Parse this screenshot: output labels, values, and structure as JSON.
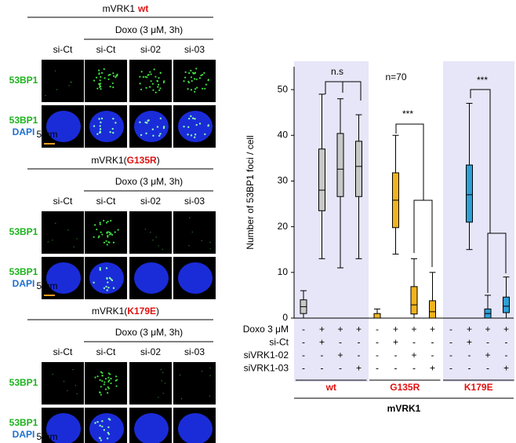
{
  "figure": {
    "panels": [
      {
        "title": "mVRK1",
        "mutation": "wt",
        "treatment": "Doxo (3 μM, 3h)",
        "columns": [
          "si-Ct",
          "si-Ct",
          "si-02",
          "si-03"
        ],
        "row1": "53BP1",
        "row2": [
          "53BP1",
          "DAPI"
        ],
        "scale_bar": "5 μm",
        "foci": [
          false,
          true,
          true,
          true
        ]
      },
      {
        "title": "mVRK1(",
        "mutation": "G135R",
        "title_end": ")",
        "treatment": "Doxo (3 μM, 3h)",
        "columns": [
          "si-Ct",
          "si-Ct",
          "si-02",
          "si-03"
        ],
        "row1": "53BP1",
        "row2": [
          "53BP1",
          "DAPI"
        ],
        "scale_bar": "5 μm",
        "foci": [
          false,
          true,
          false,
          false
        ]
      },
      {
        "title": "mVRK1(",
        "mutation": "K179E",
        "title_end": ")",
        "treatment": "Doxo (3 μM, 3h)",
        "columns": [
          "si-Ct",
          "si-Ct",
          "si-02",
          "si-03"
        ],
        "row1": "53BP1",
        "row2": [
          "53BP1",
          "DAPI"
        ],
        "scale_bar": "5 μm",
        "foci": [
          false,
          true,
          false,
          false
        ]
      }
    ]
  },
  "chart_data": {
    "type": "box",
    "ylabel": "Number of 53BP1 foci / cell",
    "ylim": [
      0,
      55
    ],
    "yticks": [
      0,
      10,
      20,
      30,
      40,
      50
    ],
    "whisker_low": [
      0,
      13,
      11,
      13,
      0,
      14,
      0,
      0,
      0,
      15,
      0,
      0
    ],
    "q1": [
      1,
      23.5,
      26.6,
      26.6,
      0,
      19.8,
      0.9,
      0,
      0,
      21,
      0,
      1.2
    ],
    "median": [
      2.5,
      28,
      32.6,
      33.2,
      0,
      25.8,
      2.9,
      1.4,
      0,
      27,
      1,
      2.6
    ],
    "q3": [
      4,
      37,
      40.4,
      38.7,
      1,
      31.8,
      6.9,
      3.8,
      0,
      33.5,
      2,
      4.6
    ],
    "whisker_high": [
      6,
      49,
      48,
      44.5,
      2,
      40,
      13,
      10,
      0,
      47,
      5,
      9
    ],
    "colors": [
      "#c8c8c8",
      "#c8c8c8",
      "#c8c8c8",
      "#c8c8c8",
      "#f0b41e",
      "#f0b41e",
      "#f0b41e",
      "#f0b41e",
      "#2f9fd8",
      "#2f9fd8",
      "#2f9fd8",
      "#2f9fd8"
    ],
    "annotations": [
      "n.s",
      "n=70",
      "***",
      "***"
    ],
    "table": [
      {
        "label": "Doxo 3 μM",
        "cells": [
          "-",
          "+",
          "+",
          "+",
          "-",
          "+",
          "+",
          "+",
          "-",
          "+",
          "+",
          "+"
        ]
      },
      {
        "label": "si-Ct",
        "cells": [
          "-",
          "+",
          "-",
          "-",
          "-",
          "+",
          "-",
          "-",
          "-",
          "+",
          "-",
          "-"
        ]
      },
      {
        "label": "siVRK1-02",
        "cells": [
          "-",
          "-",
          "+",
          "-",
          "-",
          "-",
          "+",
          "-",
          "-",
          "-",
          "+",
          "-"
        ]
      },
      {
        "label": "siVRK1-03",
        "cells": [
          "-",
          "-",
          "-",
          "+",
          "-",
          "-",
          "-",
          "+",
          "-",
          "-",
          "-",
          "+"
        ]
      }
    ],
    "groups": [
      "wt",
      "G135R",
      "K179E"
    ],
    "group_title": "mVRK1"
  }
}
